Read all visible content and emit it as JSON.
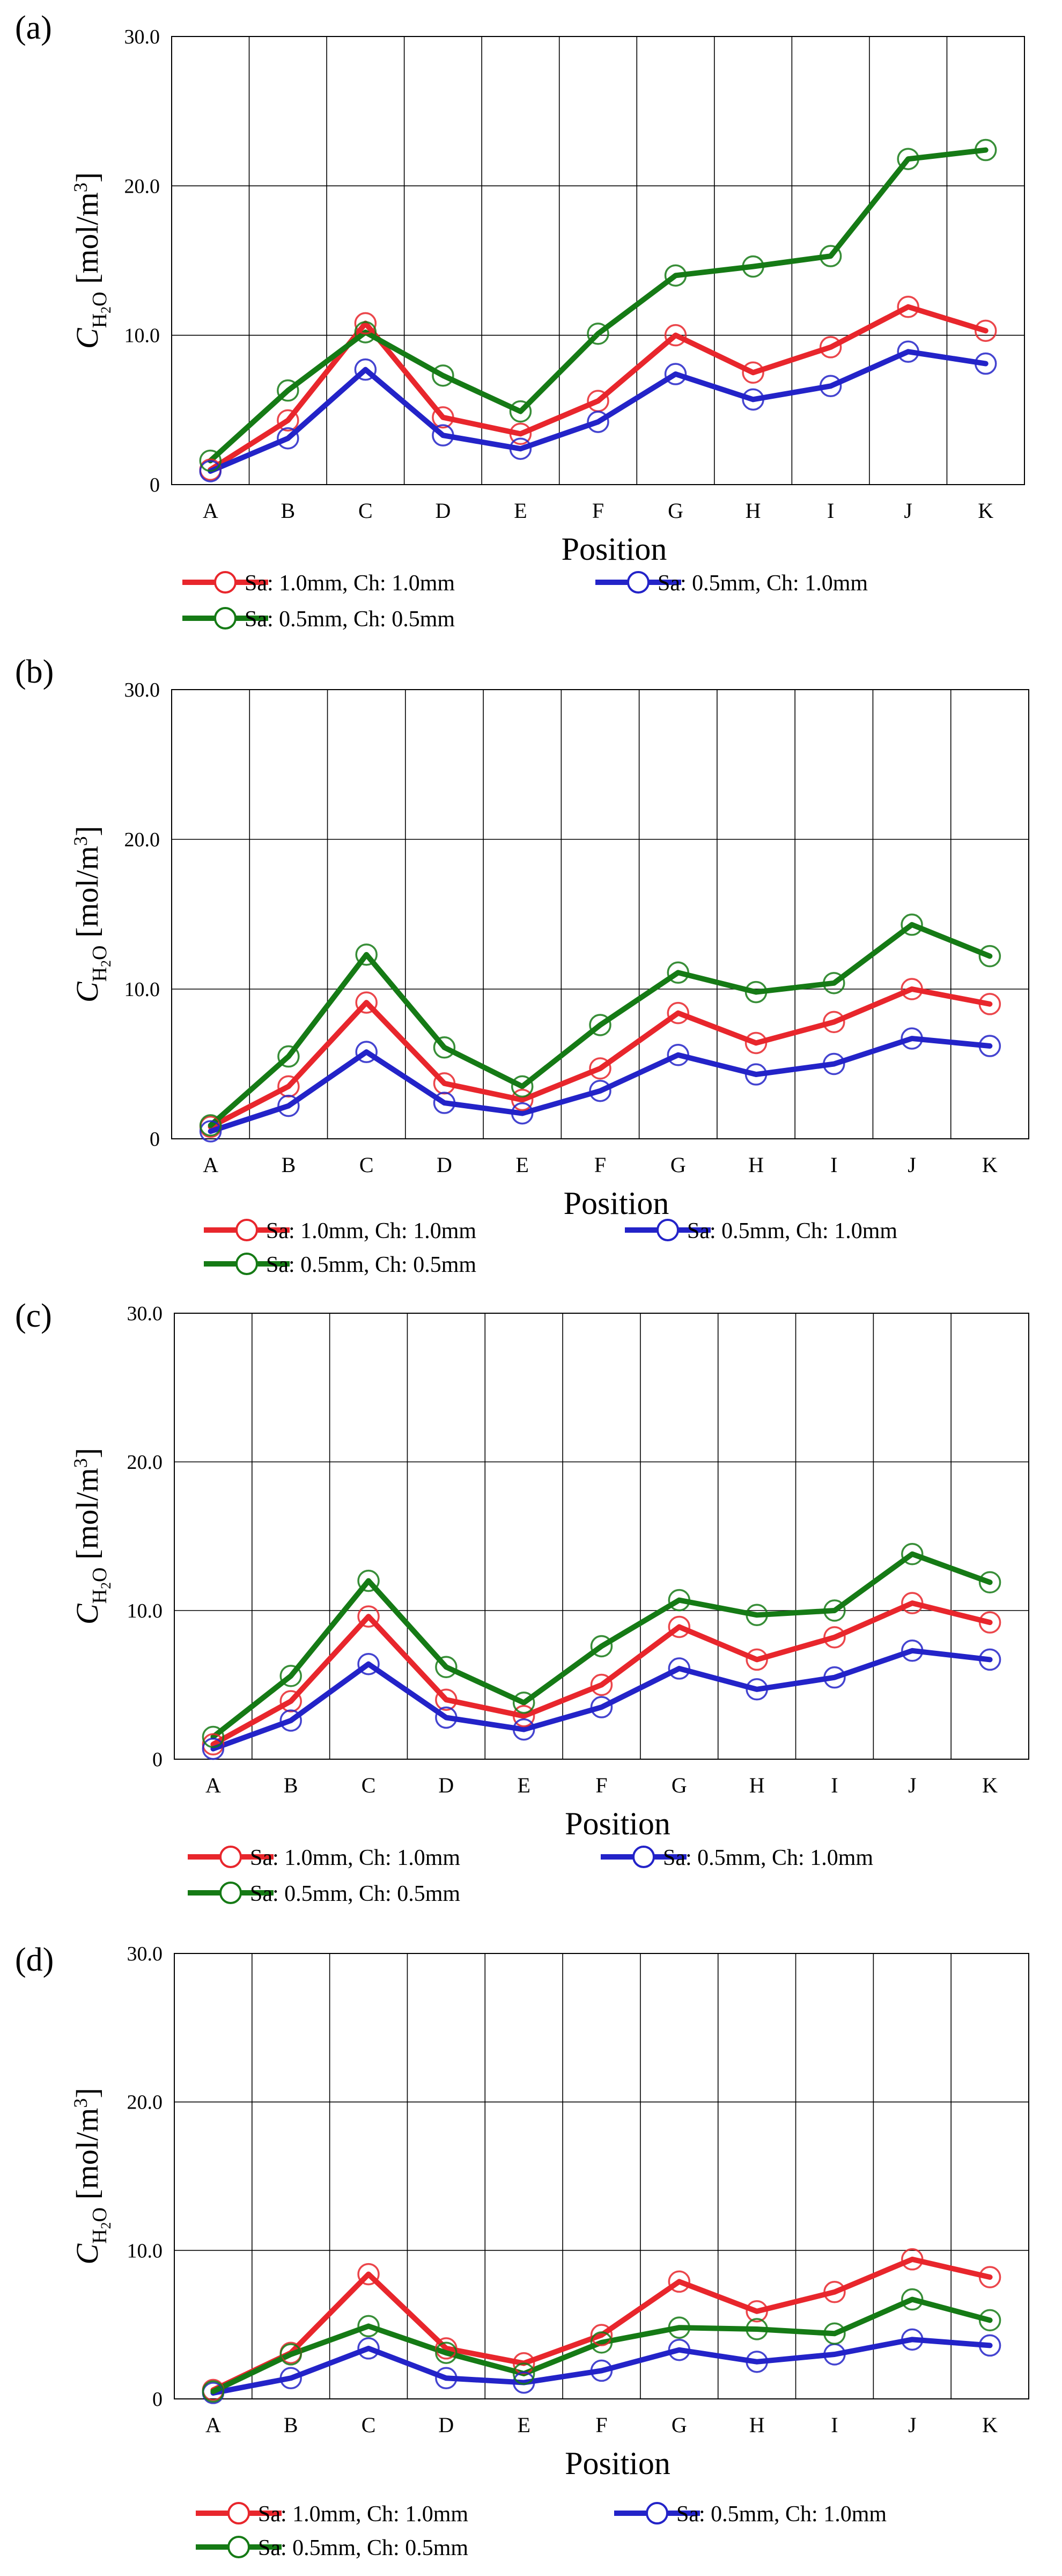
{
  "chart_data": [
    {
      "panel_label": "(a)",
      "type": "line",
      "ylim": [
        0,
        30
      ],
      "yticks": [
        "0",
        "10.0",
        "20.0",
        "30.0"
      ],
      "ylabel": {
        "symbol": "C",
        "subscript": "H2O",
        "unit": "[mol/m3]"
      },
      "xlabel": "Position",
      "categories": [
        "A",
        "B",
        "C",
        "D",
        "E",
        "F",
        "G",
        "H",
        "I",
        "J",
        "K"
      ],
      "series": [
        {
          "name": "Sa: 1.0mm, Ch: 1.0mm",
          "color": "#e8262c",
          "values": [
            1.0,
            4.3,
            10.8,
            4.5,
            3.4,
            5.6,
            10.0,
            7.5,
            9.2,
            11.9,
            10.3
          ]
        },
        {
          "name": "Sa: 0.5mm, Ch: 1.0mm",
          "color": "#2323c8",
          "values": [
            0.9,
            3.1,
            7.7,
            3.3,
            2.4,
            4.2,
            7.4,
            5.7,
            6.6,
            8.9,
            8.1
          ]
        },
        {
          "name": "Sa: 0.5mm, Ch: 0.5mm",
          "color": "#157a15",
          "values": [
            1.6,
            6.3,
            10.2,
            7.3,
            4.9,
            10.1,
            14.0,
            14.6,
            15.3,
            21.8,
            22.4
          ]
        }
      ]
    },
    {
      "panel_label": "(b)",
      "type": "line",
      "ylim": [
        0,
        30
      ],
      "yticks": [
        "0",
        "10.0",
        "20.0",
        "30.0"
      ],
      "ylabel": {
        "symbol": "C",
        "subscript": "H2O",
        "unit": "[mol/m3]"
      },
      "xlabel": "Position",
      "categories": [
        "A",
        "B",
        "C",
        "D",
        "E",
        "F",
        "G",
        "H",
        "I",
        "J",
        "K"
      ],
      "series": [
        {
          "name": "Sa: 1.0mm, Ch: 1.0mm",
          "color": "#e8262c",
          "values": [
            0.8,
            3.5,
            9.1,
            3.7,
            2.6,
            4.7,
            8.4,
            6.4,
            7.8,
            10.0,
            9.0
          ]
        },
        {
          "name": "Sa: 0.5mm, Ch: 1.0mm",
          "color": "#2323c8",
          "values": [
            0.5,
            2.2,
            5.8,
            2.4,
            1.7,
            3.2,
            5.6,
            4.3,
            5.0,
            6.7,
            6.2
          ]
        },
        {
          "name": "Sa: 0.5mm, Ch: 0.5mm",
          "color": "#157a15",
          "values": [
            0.9,
            5.5,
            12.3,
            6.1,
            3.5,
            7.6,
            11.1,
            9.8,
            10.4,
            14.3,
            12.2
          ]
        }
      ]
    },
    {
      "panel_label": "(c)",
      "type": "line",
      "ylim": [
        0,
        30
      ],
      "yticks": [
        "0",
        "10.0",
        "20.0",
        "30.0"
      ],
      "ylabel": {
        "symbol": "C",
        "subscript": "H2O",
        "unit": "[mol/m3]"
      },
      "xlabel": "Position",
      "categories": [
        "A",
        "B",
        "C",
        "D",
        "E",
        "F",
        "G",
        "H",
        "I",
        "J",
        "K"
      ],
      "series": [
        {
          "name": "Sa: 1.0mm, Ch: 1.0mm",
          "color": "#e8262c",
          "values": [
            1.0,
            3.9,
            9.6,
            4.0,
            2.9,
            5.0,
            8.9,
            6.7,
            8.2,
            10.5,
            9.2
          ]
        },
        {
          "name": "Sa: 0.5mm, Ch: 1.0mm",
          "color": "#2323c8",
          "values": [
            0.7,
            2.6,
            6.4,
            2.8,
            2.0,
            3.5,
            6.1,
            4.7,
            5.5,
            7.3,
            6.7
          ]
        },
        {
          "name": "Sa: 0.5mm, Ch: 0.5mm",
          "color": "#157a15",
          "values": [
            1.5,
            5.6,
            12.0,
            6.2,
            3.8,
            7.6,
            10.7,
            9.7,
            10.0,
            13.8,
            11.9
          ]
        }
      ]
    },
    {
      "panel_label": "(d)",
      "type": "line",
      "ylim": [
        0,
        30
      ],
      "yticks": [
        "0",
        "10.0",
        "20.0",
        "30.0"
      ],
      "ylabel": {
        "symbol": "C",
        "subscript": "H2O",
        "unit": "[mol/m3]"
      },
      "xlabel": "Position",
      "categories": [
        "A",
        "B",
        "C",
        "D",
        "E",
        "F",
        "G",
        "H",
        "I",
        "J",
        "K"
      ],
      "series": [
        {
          "name": "Sa: 1.0mm, Ch: 1.0mm",
          "color": "#e8262c",
          "values": [
            0.6,
            3.1,
            8.4,
            3.4,
            2.4,
            4.3,
            7.9,
            5.9,
            7.2,
            9.4,
            8.2
          ]
        },
        {
          "name": "Sa: 0.5mm, Ch: 1.0mm",
          "color": "#2323c8",
          "values": [
            0.4,
            1.4,
            3.4,
            1.4,
            1.1,
            1.9,
            3.3,
            2.5,
            3.0,
            4.0,
            3.6
          ]
        },
        {
          "name": "Sa: 0.5mm, Ch: 0.5mm",
          "color": "#157a15",
          "values": [
            0.5,
            3.0,
            4.9,
            3.1,
            1.7,
            3.8,
            4.8,
            4.7,
            4.4,
            6.7,
            5.3
          ]
        }
      ]
    }
  ]
}
